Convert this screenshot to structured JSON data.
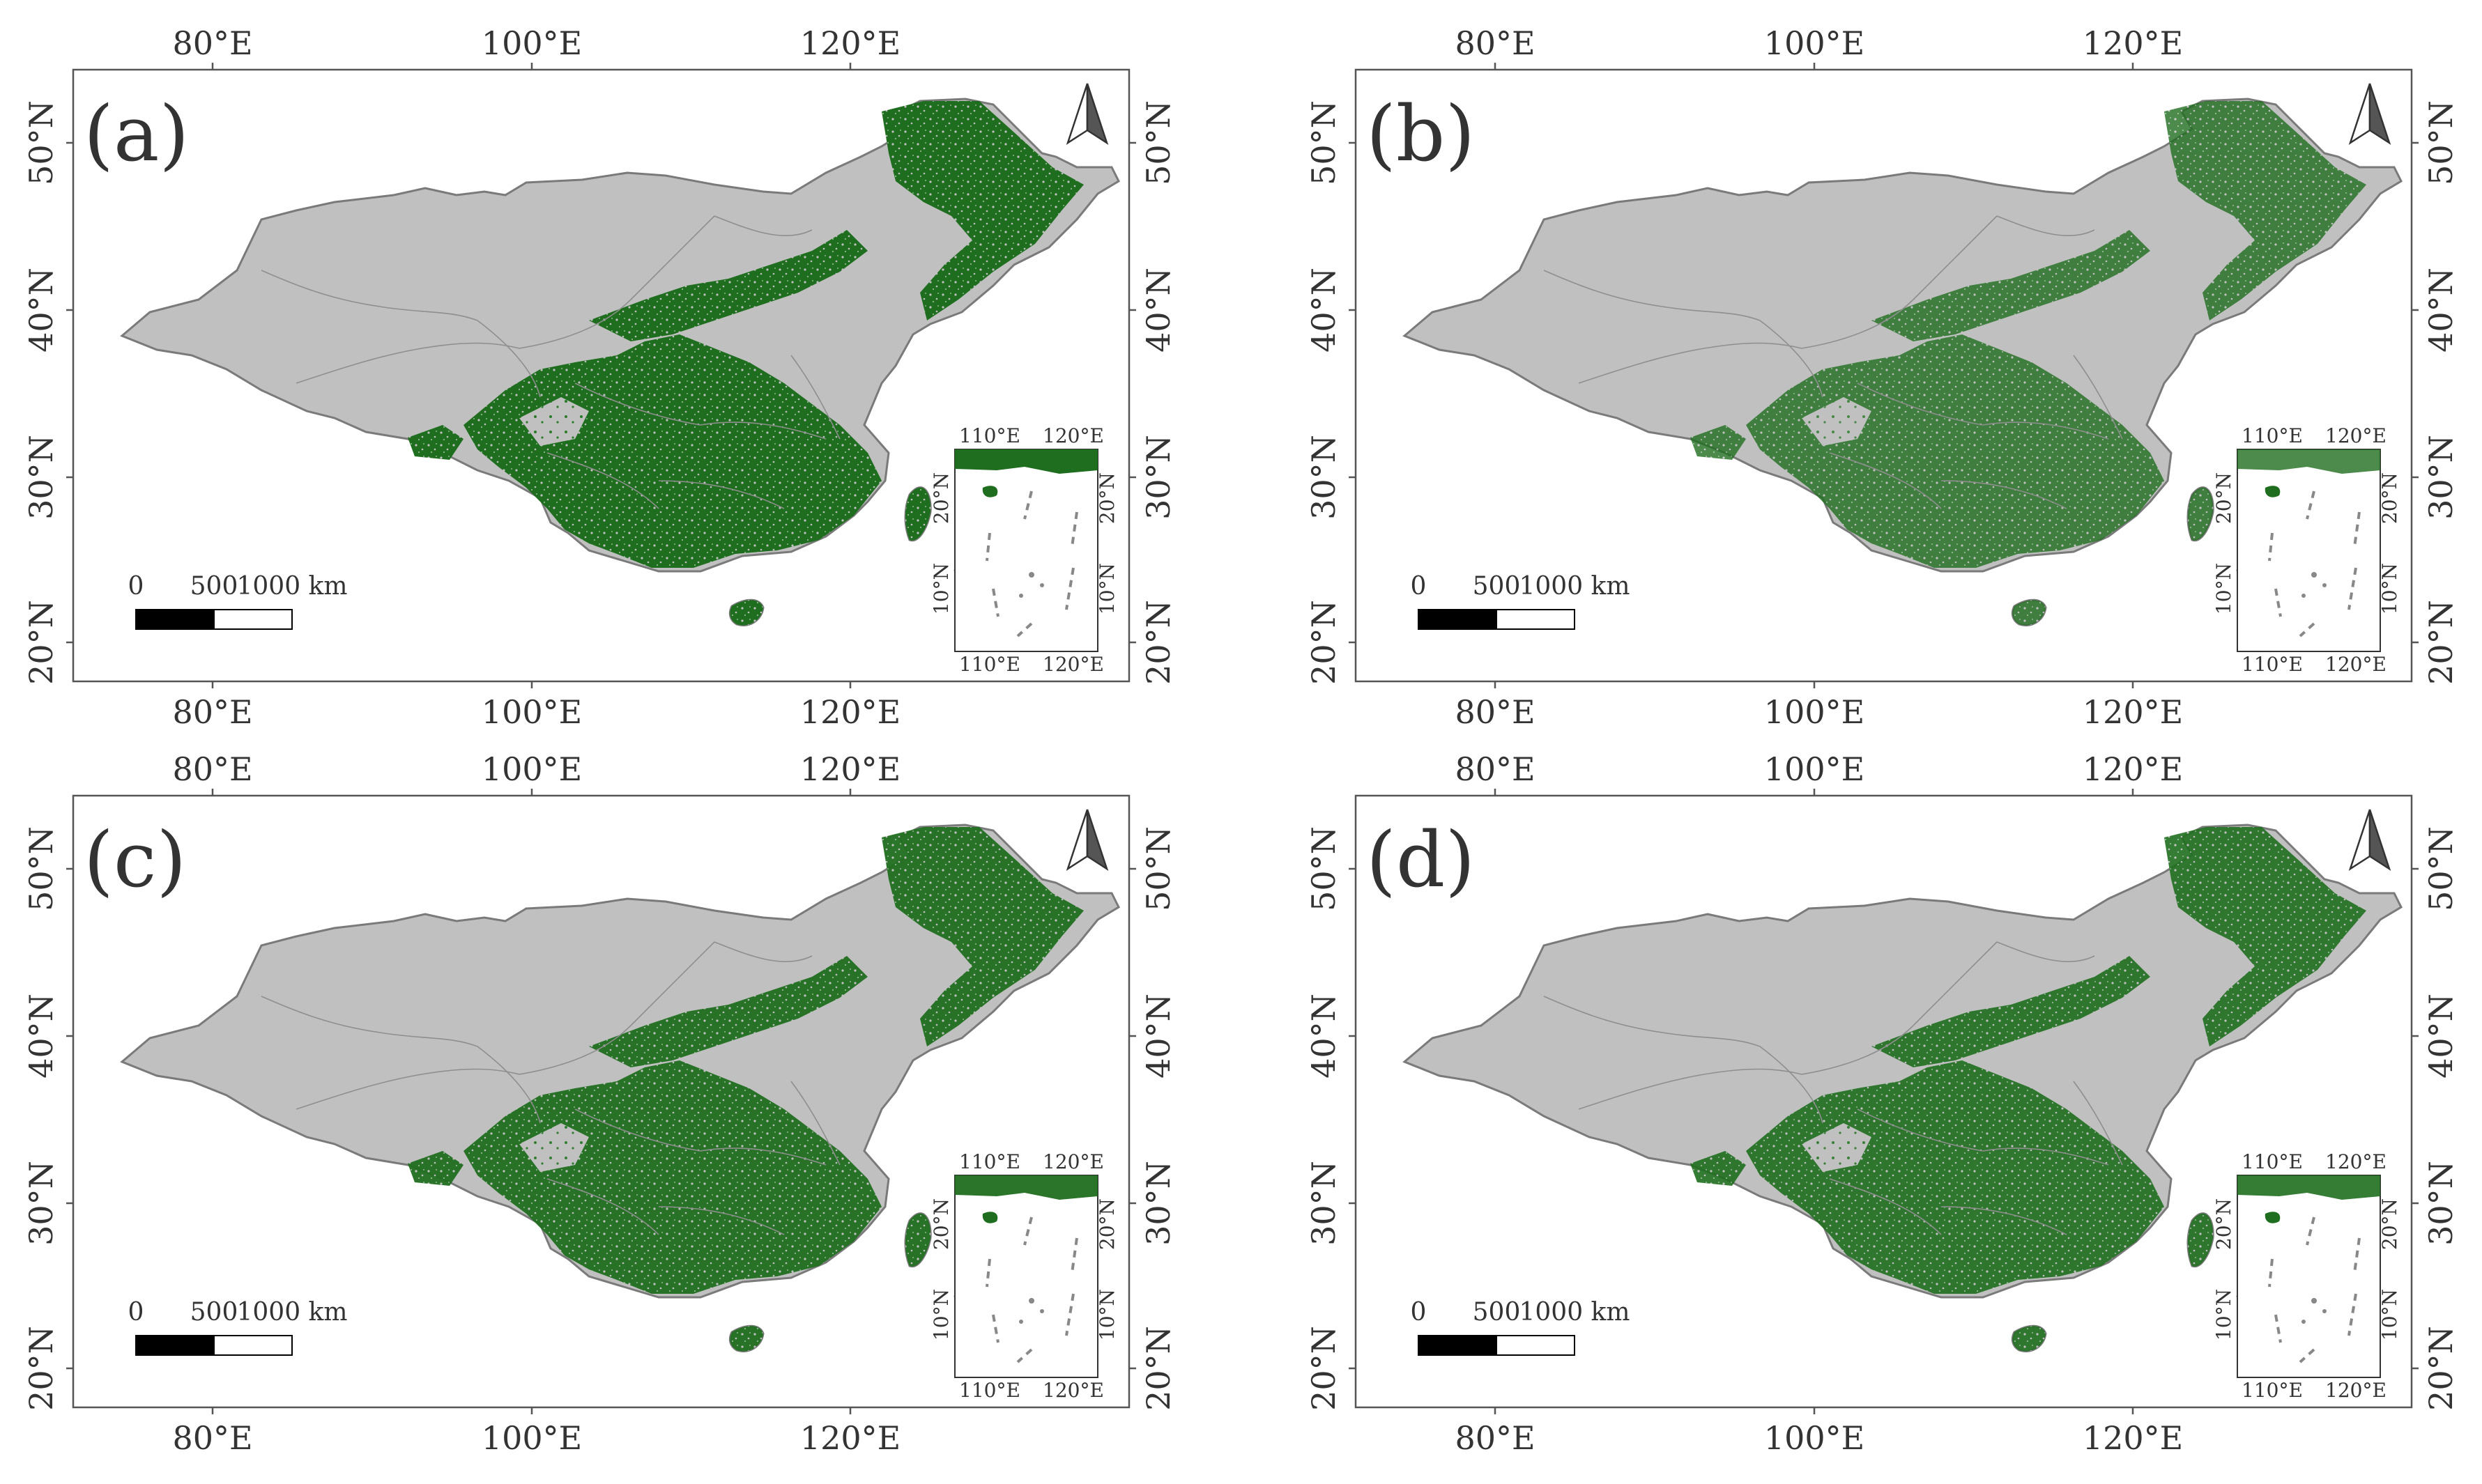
{
  "panels": [
    {
      "label": "(a)",
      "forest_density": 1.0
    },
    {
      "label": "(b)",
      "forest_density": 0.8
    },
    {
      "label": "(c)",
      "forest_density": 0.95
    },
    {
      "label": "(d)",
      "forest_density": 0.9
    }
  ],
  "lon_ticks": [
    "80°E",
    "100°E",
    "120°E"
  ],
  "lat_ticks": [
    "50°N",
    "40°N",
    "30°N",
    "20°N"
  ],
  "scalebar": {
    "labels": [
      "0",
      "500",
      "1000 km"
    ]
  },
  "inset": {
    "lon_ticks": [
      "110°E",
      "120°E"
    ],
    "lat_ticks": [
      "20°N",
      "10°N"
    ]
  },
  "colors": {
    "land": "#c0c0c0",
    "forest": "#1f6e1f",
    "border": "#7a7a7a",
    "frame": "#555555"
  },
  "north_arrow": {
    "icon": "north-arrow-icon"
  }
}
